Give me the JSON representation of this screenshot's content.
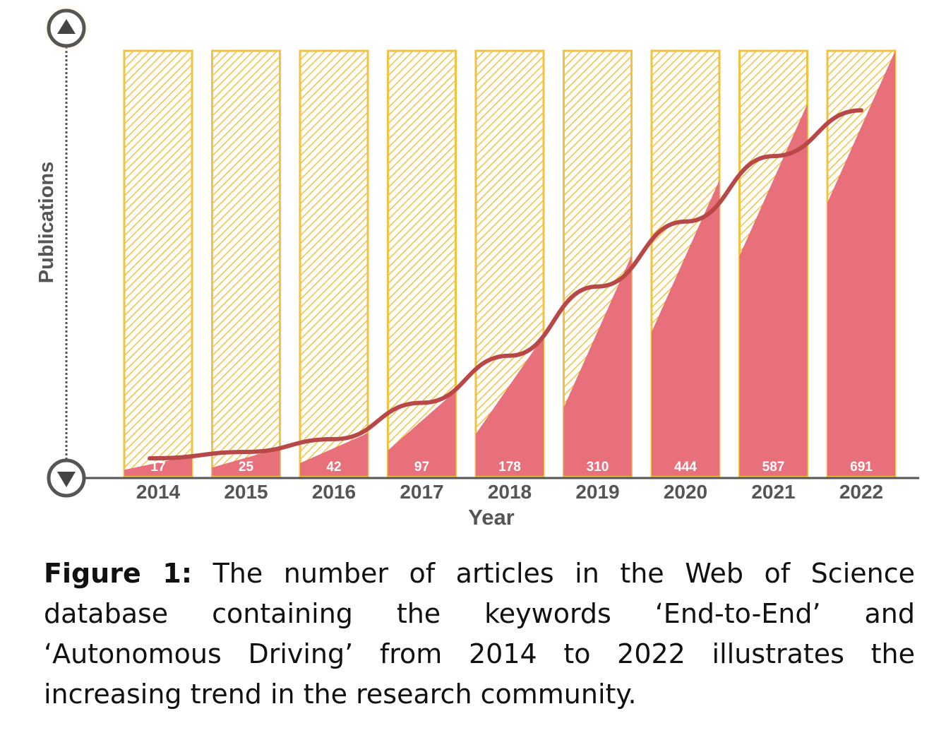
{
  "chart_data": {
    "type": "bar",
    "categories": [
      "2014",
      "2015",
      "2016",
      "2017",
      "2018",
      "2019",
      "2020",
      "2021",
      "2022"
    ],
    "values": [
      17,
      25,
      42,
      97,
      178,
      310,
      444,
      587,
      691
    ],
    "xlabel": "Year",
    "ylabel": "Publications",
    "trend_line": true,
    "colors": {
      "bar_fill": "#e8707a",
      "hatch_stroke": "#f2c240",
      "trend": "#b84848",
      "axis": "#555555"
    }
  },
  "caption": {
    "label": "Figure 1:",
    "text": "The number of articles in the Web of Science database containing the keywords ‘End-to-End’ and ‘Autonomous Driving’ from 2014 to 2022 illustrates the increasing trend in the research community."
  }
}
